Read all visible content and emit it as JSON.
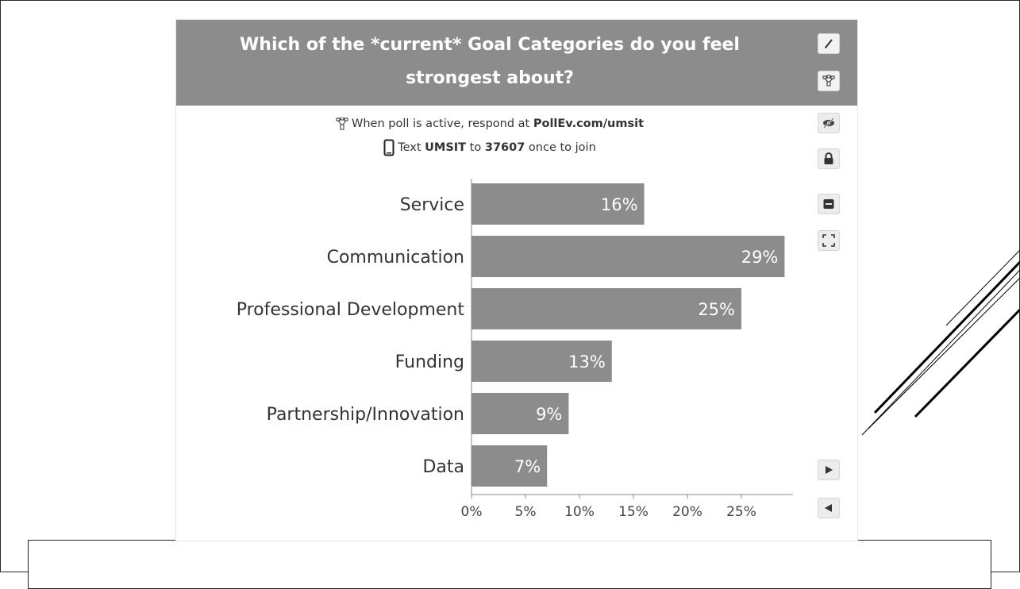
{
  "poll": {
    "title_line1": "Which of the *current* Goal Categories do you feel",
    "title_line2": "strongest about?",
    "respond_prefix": "When poll is active, respond at ",
    "respond_url": "PollEv.com/umsit",
    "text_prefix": "Text ",
    "text_keyword": "UMSIT",
    "text_middle": " to ",
    "text_number": "37607",
    "text_suffix": " once to join"
  },
  "toolbar": {
    "icons": [
      "pencil-icon",
      "poll-logo-icon",
      "hide-eye-icon",
      "lock-icon",
      "archive-icon",
      "fullscreen-icon",
      "next-arrow-icon",
      "prev-arrow-icon"
    ]
  },
  "colors": {
    "header": "#8c8c8c",
    "bar": "#8c8c8c",
    "bar_label": "#ffffff",
    "category_text": "#333333"
  },
  "chart_data": {
    "type": "bar",
    "orientation": "horizontal",
    "title": "Which of the *current* Goal Categories do you feel strongest about?",
    "categories": [
      "Service",
      "Communication",
      "Professional Development",
      "Funding",
      "Partnership/Innovation",
      "Data"
    ],
    "values": [
      16,
      29,
      25,
      13,
      9,
      7
    ],
    "value_labels": [
      "16%",
      "29%",
      "25%",
      "13%",
      "9%",
      "7%"
    ],
    "ticks": [
      0,
      5,
      10,
      15,
      20,
      25
    ],
    "tick_labels": [
      "0%",
      "5%",
      "10%",
      "15%",
      "20%",
      "25%"
    ],
    "xlim": [
      0,
      30
    ],
    "grid": false,
    "xlabel": "",
    "ylabel": ""
  }
}
